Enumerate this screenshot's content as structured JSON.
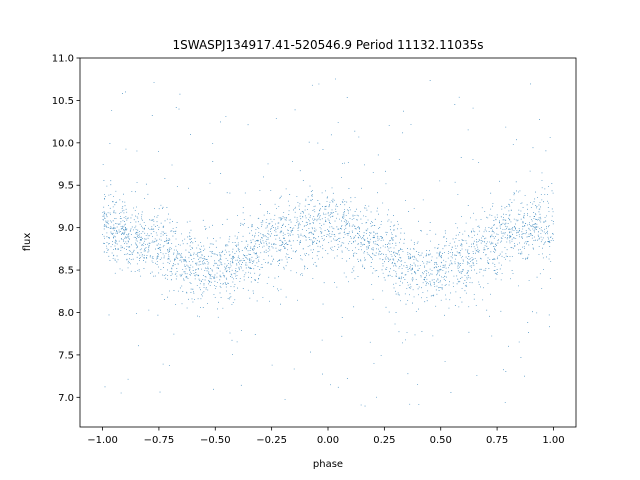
{
  "chart_data": {
    "type": "scatter",
    "title": "1SWASPJ134917.41-520546.9 Period 11132.11035s",
    "xlabel": "phase",
    "ylabel": "flux",
    "xlim": [
      -1.1,
      1.1
    ],
    "ylim": [
      6.65,
      11.0
    ],
    "xticks": [
      -1.0,
      -0.75,
      -0.5,
      -0.25,
      0.0,
      0.25,
      0.5,
      0.75,
      1.0
    ],
    "xtick_labels": [
      "−1.00",
      "−0.75",
      "−0.50",
      "−0.25",
      "0.00",
      "0.25",
      "0.50",
      "0.75",
      "1.00"
    ],
    "yticks": [
      7.0,
      7.5,
      8.0,
      8.5,
      9.0,
      9.5,
      10.0,
      10.5,
      11.0
    ],
    "ytick_labels": [
      "7.0",
      "7.5",
      "8.0",
      "8.5",
      "9.0",
      "9.5",
      "10.0",
      "10.5",
      "11.0"
    ],
    "grid": false,
    "legend": "none",
    "marker_color": "#1f77b4",
    "series": [
      {
        "phase_range": [
          -1.0,
          1.0
        ],
        "profile_phase": [
          -1.0,
          -0.9,
          -0.8,
          -0.7,
          -0.6,
          -0.5,
          -0.4,
          -0.3,
          -0.2,
          -0.1,
          0.0,
          0.1,
          0.2,
          0.3,
          0.4,
          0.5,
          0.6,
          0.7,
          0.8,
          0.9,
          1.0
        ],
        "profile_flux": [
          9.0,
          8.95,
          8.85,
          8.7,
          8.55,
          8.5,
          8.6,
          8.78,
          8.9,
          9.0,
          9.05,
          8.98,
          8.85,
          8.68,
          8.52,
          8.48,
          8.58,
          8.78,
          8.92,
          9.0,
          9.02
        ],
        "core_scatter": 0.2,
        "outlier_range": [
          6.85,
          10.8
        ]
      }
    ]
  }
}
